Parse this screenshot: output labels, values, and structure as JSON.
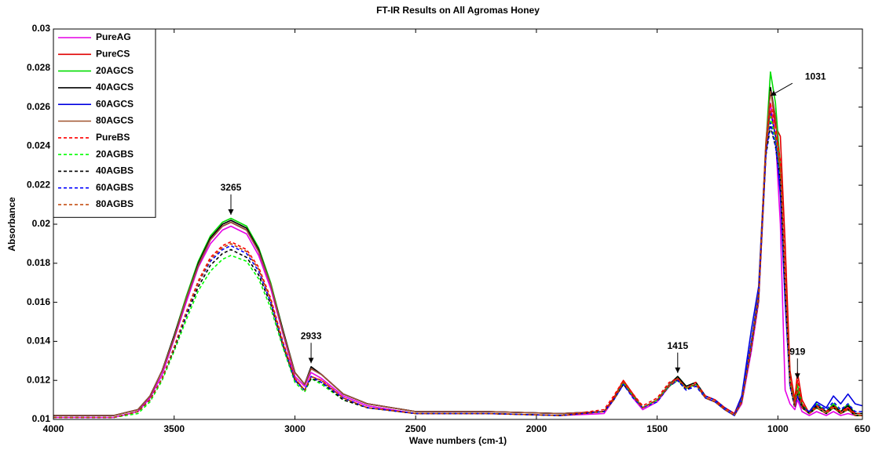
{
  "chart_data": {
    "type": "line",
    "title": "FT-IR Results on All Agromas Honey",
    "x_label": "Wave numbers (cm-1)",
    "y_label": "Absorbance",
    "xlim": [
      4000,
      650
    ],
    "ylim": [
      0.01,
      0.03
    ],
    "xticks": [
      4000,
      3500,
      3000,
      2500,
      2000,
      1500,
      1000,
      650
    ],
    "yticks": [
      0.01,
      0.012,
      0.014,
      0.016,
      0.018,
      0.02,
      0.022,
      0.024,
      0.026,
      0.028,
      0.03
    ],
    "legend": "upper left",
    "x": [
      4000,
      3750,
      3650,
      3600,
      3550,
      3500,
      3450,
      3400,
      3350,
      3300,
      3265,
      3200,
      3150,
      3100,
      3050,
      3000,
      2960,
      2933,
      2890,
      2800,
      2700,
      2500,
      2200,
      1900,
      1720,
      1680,
      1640,
      1600,
      1560,
      1500,
      1450,
      1415,
      1380,
      1340,
      1300,
      1260,
      1220,
      1180,
      1150,
      1110,
      1080,
      1050,
      1031,
      1010,
      990,
      970,
      950,
      930,
      919,
      900,
      870,
      840,
      800,
      770,
      740,
      710,
      680,
      650
    ],
    "series": [
      {
        "name": "PureAG",
        "color": "#e600e6",
        "dashed": false,
        "values": [
          0.0101,
          0.0101,
          0.0104,
          0.0111,
          0.0123,
          0.0141,
          0.016,
          0.0178,
          0.019,
          0.0197,
          0.0199,
          0.0195,
          0.0184,
          0.0167,
          0.0144,
          0.0122,
          0.0117,
          0.0124,
          0.0121,
          0.0112,
          0.0107,
          0.0103,
          0.0103,
          0.0102,
          0.0103,
          0.011,
          0.0119,
          0.0111,
          0.0105,
          0.0109,
          0.0117,
          0.0121,
          0.0116,
          0.0118,
          0.0111,
          0.0109,
          0.0105,
          0.0102,
          0.0108,
          0.0135,
          0.016,
          0.0235,
          0.0262,
          0.0245,
          0.02,
          0.0115,
          0.0108,
          0.0105,
          0.011,
          0.0104,
          0.0102,
          0.0104,
          0.0102,
          0.0104,
          0.0102,
          0.0103,
          0.0102,
          0.0102
        ]
      },
      {
        "name": "PureCS",
        "color": "#e00000",
        "dashed": false,
        "values": [
          0.0102,
          0.0102,
          0.0105,
          0.0112,
          0.0125,
          0.0142,
          0.0162,
          0.0179,
          0.0192,
          0.0199,
          0.0201,
          0.0197,
          0.0186,
          0.0169,
          0.0145,
          0.0124,
          0.0118,
          0.0126,
          0.0123,
          0.0113,
          0.0108,
          0.0104,
          0.0104,
          0.0103,
          0.0104,
          0.0111,
          0.012,
          0.0113,
          0.0106,
          0.011,
          0.0118,
          0.0121,
          0.0116,
          0.0118,
          0.0111,
          0.0109,
          0.0105,
          0.0102,
          0.0109,
          0.0138,
          0.0162,
          0.0235,
          0.027,
          0.025,
          0.0245,
          0.019,
          0.0125,
          0.011,
          0.0124,
          0.011,
          0.0103,
          0.0107,
          0.0104,
          0.0107,
          0.0103,
          0.0106,
          0.0102,
          0.0102
        ]
      },
      {
        "name": "20AGCS",
        "color": "#00dd00",
        "dashed": false,
        "values": [
          0.0102,
          0.0102,
          0.0105,
          0.0112,
          0.0125,
          0.0143,
          0.0163,
          0.0181,
          0.0194,
          0.0201,
          0.0203,
          0.0199,
          0.0188,
          0.017,
          0.0146,
          0.0124,
          0.0118,
          0.0126,
          0.0123,
          0.0113,
          0.0108,
          0.0104,
          0.0104,
          0.0103,
          0.0104,
          0.011,
          0.0119,
          0.0112,
          0.0106,
          0.011,
          0.0118,
          0.0122,
          0.0117,
          0.0119,
          0.0112,
          0.011,
          0.0106,
          0.0103,
          0.011,
          0.014,
          0.0165,
          0.024,
          0.0278,
          0.0262,
          0.023,
          0.017,
          0.012,
          0.0108,
          0.0118,
          0.0108,
          0.0103,
          0.0108,
          0.0104,
          0.0108,
          0.0104,
          0.0108,
          0.0103,
          0.0103
        ]
      },
      {
        "name": "40AGCS",
        "color": "#000000",
        "dashed": false,
        "values": [
          0.0102,
          0.0102,
          0.0105,
          0.0112,
          0.0125,
          0.0143,
          0.0162,
          0.018,
          0.0193,
          0.02,
          0.0202,
          0.0198,
          0.0187,
          0.0169,
          0.0146,
          0.0124,
          0.0118,
          0.0127,
          0.0123,
          0.0113,
          0.0108,
          0.0104,
          0.0104,
          0.0103,
          0.0104,
          0.011,
          0.0119,
          0.0112,
          0.0106,
          0.011,
          0.0118,
          0.0122,
          0.0117,
          0.0119,
          0.0112,
          0.011,
          0.0106,
          0.0103,
          0.011,
          0.014,
          0.0164,
          0.0238,
          0.027,
          0.0255,
          0.0225,
          0.0165,
          0.0118,
          0.0107,
          0.0115,
          0.0107,
          0.0103,
          0.0107,
          0.0104,
          0.0107,
          0.0104,
          0.0107,
          0.0103,
          0.0103
        ]
      },
      {
        "name": "60AGCS",
        "color": "#0000e0",
        "dashed": false,
        "values": [
          0.0102,
          0.0102,
          0.0105,
          0.0112,
          0.0125,
          0.0142,
          0.0162,
          0.0179,
          0.0192,
          0.0199,
          0.0201,
          0.0197,
          0.0186,
          0.0169,
          0.0145,
          0.0124,
          0.0118,
          0.0126,
          0.0123,
          0.0113,
          0.0108,
          0.0104,
          0.0104,
          0.0103,
          0.0104,
          0.011,
          0.0118,
          0.0112,
          0.0106,
          0.011,
          0.0117,
          0.0121,
          0.0116,
          0.0118,
          0.0112,
          0.011,
          0.0106,
          0.0103,
          0.0112,
          0.0146,
          0.0168,
          0.024,
          0.0258,
          0.0245,
          0.0215,
          0.016,
          0.0118,
          0.0107,
          0.0112,
          0.0106,
          0.0104,
          0.0109,
          0.0106,
          0.0112,
          0.0108,
          0.0113,
          0.0108,
          0.0107
        ]
      },
      {
        "name": "80AGCS",
        "color": "#a0522d",
        "dashed": false,
        "values": [
          0.0102,
          0.0102,
          0.0105,
          0.0112,
          0.0125,
          0.0142,
          0.0162,
          0.0179,
          0.0192,
          0.0199,
          0.0201,
          0.0197,
          0.0186,
          0.0169,
          0.0145,
          0.0124,
          0.0118,
          0.0126,
          0.0123,
          0.0113,
          0.0108,
          0.0104,
          0.0104,
          0.0103,
          0.0104,
          0.011,
          0.0119,
          0.0112,
          0.0106,
          0.011,
          0.0118,
          0.0121,
          0.0116,
          0.0118,
          0.0111,
          0.0109,
          0.0105,
          0.0102,
          0.011,
          0.014,
          0.0165,
          0.0242,
          0.0268,
          0.0255,
          0.0228,
          0.0168,
          0.0119,
          0.0107,
          0.0114,
          0.0106,
          0.0103,
          0.0106,
          0.0103,
          0.0106,
          0.0103,
          0.0105,
          0.0102,
          0.0102
        ]
      },
      {
        "name": "PureBS",
        "color": "#ff0000",
        "dashed": true,
        "values": [
          0.0101,
          0.0101,
          0.0104,
          0.011,
          0.0121,
          0.0137,
          0.0155,
          0.0171,
          0.0183,
          0.0189,
          0.0191,
          0.0187,
          0.0178,
          0.0162,
          0.014,
          0.0121,
          0.0115,
          0.0122,
          0.012,
          0.0111,
          0.0106,
          0.0103,
          0.0103,
          0.0102,
          0.0105,
          0.0112,
          0.012,
          0.0113,
          0.0107,
          0.0111,
          0.0119,
          0.0121,
          0.0116,
          0.0119,
          0.0112,
          0.011,
          0.0106,
          0.0103,
          0.011,
          0.0138,
          0.0162,
          0.0238,
          0.0262,
          0.025,
          0.0232,
          0.0175,
          0.0122,
          0.0109,
          0.012,
          0.0108,
          0.0103,
          0.0107,
          0.0104,
          0.0107,
          0.0104,
          0.0106,
          0.0103,
          0.0103
        ]
      },
      {
        "name": "20AGBS",
        "color": "#00ff00",
        "dashed": true,
        "values": [
          0.0101,
          0.0101,
          0.0103,
          0.0109,
          0.012,
          0.0135,
          0.0151,
          0.0166,
          0.0176,
          0.0182,
          0.0184,
          0.0181,
          0.0172,
          0.0157,
          0.0137,
          0.0119,
          0.0114,
          0.0121,
          0.0118,
          0.011,
          0.0106,
          0.0103,
          0.0103,
          0.0102,
          0.0104,
          0.011,
          0.0119,
          0.0112,
          0.0106,
          0.011,
          0.0117,
          0.012,
          0.0116,
          0.0118,
          0.0111,
          0.0109,
          0.0105,
          0.0102,
          0.0109,
          0.0138,
          0.0162,
          0.0236,
          0.0255,
          0.0242,
          0.0226,
          0.0168,
          0.0118,
          0.0107,
          0.0114,
          0.0106,
          0.0103,
          0.0106,
          0.0103,
          0.0106,
          0.0103,
          0.0105,
          0.0102,
          0.0102
        ]
      },
      {
        "name": "40AGBS",
        "color": "#000000",
        "dashed": true,
        "values": [
          0.0101,
          0.0101,
          0.0104,
          0.011,
          0.0121,
          0.0136,
          0.0153,
          0.0168,
          0.0179,
          0.0185,
          0.0187,
          0.0183,
          0.0174,
          0.0159,
          0.0138,
          0.012,
          0.0115,
          0.0121,
          0.0119,
          0.011,
          0.0106,
          0.0103,
          0.0103,
          0.0102,
          0.0104,
          0.011,
          0.0118,
          0.0112,
          0.0106,
          0.011,
          0.0117,
          0.012,
          0.0115,
          0.0118,
          0.0111,
          0.0109,
          0.0105,
          0.0102,
          0.0109,
          0.0137,
          0.0161,
          0.0235,
          0.025,
          0.024,
          0.0222,
          0.0165,
          0.0117,
          0.0106,
          0.0113,
          0.0106,
          0.0103,
          0.0106,
          0.0103,
          0.0106,
          0.0103,
          0.0105,
          0.0102,
          0.0102
        ]
      },
      {
        "name": "60AGBS",
        "color": "#0000ff",
        "dashed": true,
        "values": [
          0.0101,
          0.0101,
          0.0104,
          0.011,
          0.0121,
          0.0137,
          0.0154,
          0.017,
          0.0181,
          0.0187,
          0.0189,
          0.0185,
          0.0176,
          0.016,
          0.0139,
          0.012,
          0.0115,
          0.0122,
          0.0119,
          0.0111,
          0.0106,
          0.0103,
          0.0103,
          0.0102,
          0.0104,
          0.011,
          0.0118,
          0.0111,
          0.0106,
          0.0109,
          0.0117,
          0.012,
          0.0115,
          0.0117,
          0.0111,
          0.0109,
          0.0105,
          0.0102,
          0.011,
          0.014,
          0.0163,
          0.0236,
          0.0252,
          0.024,
          0.022,
          0.0162,
          0.0117,
          0.0107,
          0.0112,
          0.0106,
          0.0104,
          0.0108,
          0.0105,
          0.0109,
          0.0105,
          0.0108,
          0.0104,
          0.0104
        ]
      },
      {
        "name": "80AGBS",
        "color": "#c04000",
        "dashed": true,
        "values": [
          0.0101,
          0.0101,
          0.0104,
          0.011,
          0.0121,
          0.0137,
          0.0155,
          0.017,
          0.0182,
          0.0188,
          0.019,
          0.0186,
          0.0177,
          0.0161,
          0.0139,
          0.0121,
          0.0115,
          0.0122,
          0.012,
          0.0111,
          0.0106,
          0.0103,
          0.0103,
          0.0102,
          0.0104,
          0.011,
          0.0119,
          0.0112,
          0.0106,
          0.011,
          0.0117,
          0.0121,
          0.0116,
          0.0118,
          0.0111,
          0.0109,
          0.0105,
          0.0102,
          0.0109,
          0.0138,
          0.0162,
          0.0238,
          0.0258,
          0.0246,
          0.0228,
          0.017,
          0.0119,
          0.0107,
          0.0115,
          0.0106,
          0.0103,
          0.0106,
          0.0103,
          0.0106,
          0.0103,
          0.0105,
          0.0102,
          0.0102
        ]
      }
    ],
    "annotations": [
      {
        "label": "3265",
        "x": 3265,
        "y": 0.0204
      },
      {
        "label": "2933",
        "x": 2933,
        "y": 0.0128
      },
      {
        "label": "1415",
        "x": 1415,
        "y": 0.0123
      },
      {
        "label": "1031",
        "x": 1031,
        "y": 0.0265
      },
      {
        "label": "919",
        "x": 919,
        "y": 0.012
      }
    ]
  }
}
